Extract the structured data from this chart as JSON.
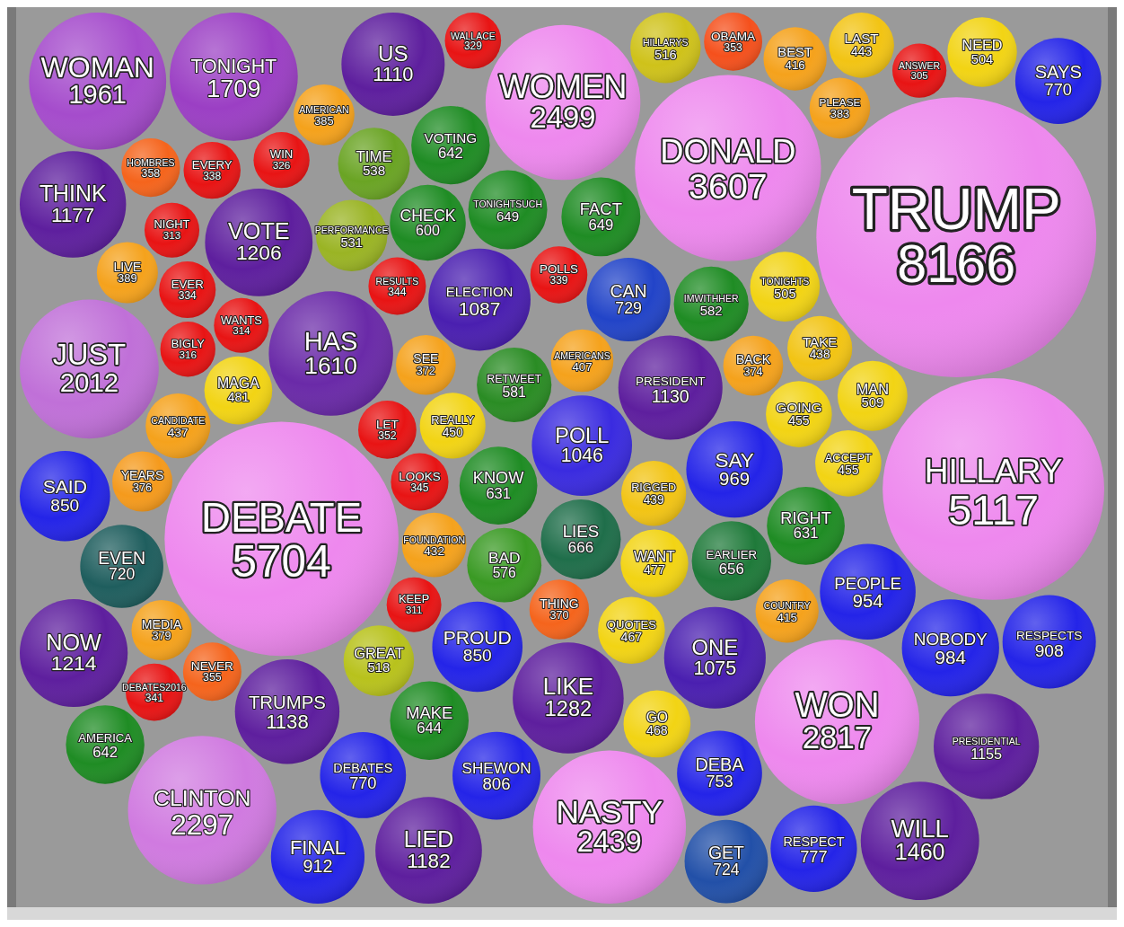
{
  "chart_data": {
    "type": "other",
    "data_labels": true,
    "categories": [
      "BIGLY",
      "POLL",
      "GREAT",
      "YEARS",
      "QUOTES",
      "DEBATE",
      "FINAL",
      "THINK",
      "MAKE",
      "VOTING",
      "PLEASE",
      "AMERICA",
      "TONIGHT",
      "PRESIDENTIAL",
      "GET",
      "MEDIA",
      "ELECTION",
      "WOMAN",
      "HOMBRES",
      "FACT",
      "CHECK",
      "DEBATES2016",
      "GO",
      "NEVER",
      "RESPECT",
      "DEBATES",
      "RIGGED",
      "FOUNDATION",
      "CAN",
      "PEOPLE",
      "BAD",
      "ANSWER",
      "WALLACE",
      "SAID",
      "BEST",
      "LIED",
      "LIES",
      "NASTY",
      "LAST",
      "OBAMA",
      "TRUMPS",
      "IMWITHHER",
      "TAKE",
      "NEED",
      "US",
      "DEBA",
      "EARLIER",
      "HILLARY",
      "AMERICANS",
      "HAS",
      "WON",
      "VOTE",
      "SAYS",
      "THING",
      "MAN",
      "ACCEPT",
      "WANTS",
      "WOMEN",
      "BACK",
      "LIVE",
      "WIN",
      "SEE",
      "LOOKS",
      "NIGHT",
      "PRESIDENT",
      "EVEN",
      "KEEP",
      "TONIGHTSUCH",
      "RESPECTS",
      "CANDIDATE",
      "SAY",
      "WILL",
      "JUST",
      "TRUMP",
      "PROUD",
      "REALLY",
      "LET",
      "ONE",
      "RETWEET",
      "HILLARYS",
      "EVERY",
      "KNOW",
      "RIGHT",
      "TIME",
      "GOING",
      "NOW",
      "AMERICAN",
      "COUNTRY",
      "MAGA",
      "WANT",
      "CLINTON",
      "DONALD",
      "SHEWON",
      "RESULTS",
      "EVER",
      "POLLS",
      "TONIGHTS",
      "NOBODY",
      "LIKE",
      "PERFORMANCE"
    ],
    "values": [
      316,
      1046,
      518,
      376,
      467,
      5704,
      912,
      1177,
      644,
      642,
      383,
      642,
      1709,
      1155,
      724,
      379,
      1087,
      1961,
      358,
      649,
      600,
      341,
      468,
      355,
      777,
      770,
      439,
      432,
      729,
      954,
      576,
      305,
      329,
      850,
      416,
      1182,
      666,
      2439,
      443,
      353,
      1138,
      582,
      438,
      504,
      1110,
      753,
      656,
      5117,
      407,
      1610,
      2817,
      1206,
      770,
      370,
      509,
      455,
      314,
      2499,
      374,
      389,
      326,
      372,
      345,
      313,
      1130,
      720,
      311,
      649,
      908,
      437,
      969,
      1460,
      2012,
      8166,
      850,
      450,
      352,
      1075,
      581,
      516,
      338,
      631,
      631,
      538,
      455,
      1214,
      385,
      415,
      481,
      477,
      2297,
      3607,
      806,
      344,
      334,
      339,
      505,
      984,
      1282,
      531
    ],
    "colors": [
      "#e81414",
      "#3a2be0",
      "#b8c21c",
      "#f59a1c",
      "#f2d414",
      "#ee88ee",
      "#2424e8",
      "#5e1f9e",
      "#1f8c24",
      "#1f8c24",
      "#f5a21c",
      "#1f8c24",
      "#9b3fc4",
      "#5e1f9e",
      "#2250a8",
      "#f5a21c",
      "#4a1fb0",
      "#a54ccc",
      "#f5641c",
      "#1f8c24",
      "#1f8c24",
      "#e81414",
      "#f2d414",
      "#f5641c",
      "#2424e8",
      "#2424e8",
      "#f2c414",
      "#f5a21c",
      "#2244c8",
      "#2424e8",
      "#3a9a24",
      "#e81414",
      "#e81414",
      "#2424e8",
      "#f5a21c",
      "#5e1f9e",
      "#1f6e4a",
      "#ee88ee",
      "#f2c414",
      "#f5501c",
      "#5e1f9e",
      "#1f8c24",
      "#f2c414",
      "#f2d414",
      "#5e1f9e",
      "#2424e8",
      "#1f7a3a",
      "#ee88ee",
      "#f5a21c",
      "#6a2aa8",
      "#ee88ee",
      "#5e1f9e",
      "#2424e8",
      "#f5641c",
      "#f2d414",
      "#f2d414",
      "#e81414",
      "#ee88ee",
      "#f5a21c",
      "#f5a21c",
      "#e81414",
      "#f5a21c",
      "#e81414",
      "#e81414",
      "#5e1f9e",
      "#1f5e5e",
      "#e81414",
      "#1f8c24",
      "#2424e8",
      "#f5a21c",
      "#2424e8",
      "#5e1f9e",
      "#c070d8",
      "#ee88ee",
      "#2424e8",
      "#f2d414",
      "#e81414",
      "#4a1fb0",
      "#2a8c24",
      "#cfc21a",
      "#e81414",
      "#1f8c24",
      "#1f8c24",
      "#6aa424",
      "#f2d414",
      "#5e1f9e",
      "#f5a21c",
      "#f5a21c",
      "#f2d414",
      "#f2d414",
      "#d07ae0",
      "#ee88ee",
      "#2424e8",
      "#e81414",
      "#e81414",
      "#e81414",
      "#f2d414",
      "#2424e8",
      "#5e1f9e",
      "#9ab424"
    ]
  }
}
